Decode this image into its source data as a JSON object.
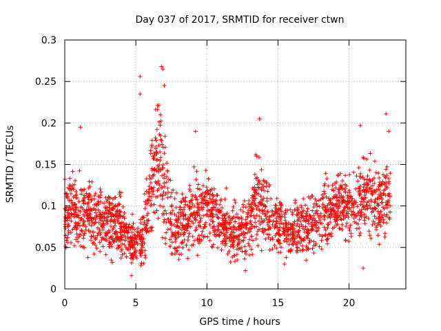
{
  "chart_data": {
    "type": "scatter",
    "title": "Day 037 of 2017, SRMTID for receiver ctwn",
    "xlabel": "GPS time / hours",
    "ylabel": "SRMTID / TECUs",
    "xlim": [
      0,
      24
    ],
    "ylim": [
      0,
      0.3
    ],
    "x_ticks": [
      0,
      5,
      10,
      15,
      20
    ],
    "x_tick_labels": [
      "0",
      "5",
      "10",
      "15",
      "20"
    ],
    "y_ticks": [
      0,
      0.05,
      0.1,
      0.15,
      0.2,
      0.25,
      0.3
    ],
    "y_tick_labels": [
      "0",
      "0.05",
      "0.1",
      "0.15",
      "0.2",
      "0.25",
      "0.3"
    ],
    "grid": true,
    "marker": "+",
    "color": "#ff0000",
    "series_trend": {
      "hours": [
        0,
        1,
        2,
        3,
        4,
        4.5,
        5,
        5.5,
        6,
        6.5,
        7,
        7.5,
        8,
        9,
        10,
        11,
        12,
        13,
        13.5,
        14,
        15,
        16,
        17,
        18,
        19,
        20,
        21,
        22,
        23
      ],
      "typical": [
        0.085,
        0.095,
        0.09,
        0.08,
        0.075,
        0.06,
        0.055,
        0.065,
        0.11,
        0.16,
        0.12,
        0.085,
        0.075,
        0.09,
        0.095,
        0.08,
        0.065,
        0.075,
        0.11,
        0.095,
        0.075,
        0.07,
        0.075,
        0.085,
        0.095,
        0.1,
        0.11,
        0.105,
        0.11
      ],
      "spread": [
        0.03,
        0.035,
        0.03,
        0.03,
        0.03,
        0.02,
        0.02,
        0.03,
        0.05,
        0.06,
        0.05,
        0.035,
        0.03,
        0.035,
        0.035,
        0.03,
        0.025,
        0.03,
        0.045,
        0.035,
        0.025,
        0.025,
        0.025,
        0.03,
        0.03,
        0.03,
        0.035,
        0.035,
        0.035
      ]
    },
    "notable_points": [
      {
        "x": 6.8,
        "y": 0.268
      },
      {
        "x": 6.9,
        "y": 0.265
      },
      {
        "x": 5.3,
        "y": 0.256
      },
      {
        "x": 7.0,
        "y": 0.245
      },
      {
        "x": 5.3,
        "y": 0.235
      },
      {
        "x": 22.6,
        "y": 0.211
      },
      {
        "x": 13.7,
        "y": 0.205
      },
      {
        "x": 20.8,
        "y": 0.197
      },
      {
        "x": 1.1,
        "y": 0.195
      },
      {
        "x": 9.2,
        "y": 0.19
      },
      {
        "x": 22.8,
        "y": 0.19
      },
      {
        "x": 4.7,
        "y": 0.016
      },
      {
        "x": 12.7,
        "y": 0.022
      },
      {
        "x": 21.0,
        "y": 0.025
      }
    ],
    "point_count": 2200
  }
}
